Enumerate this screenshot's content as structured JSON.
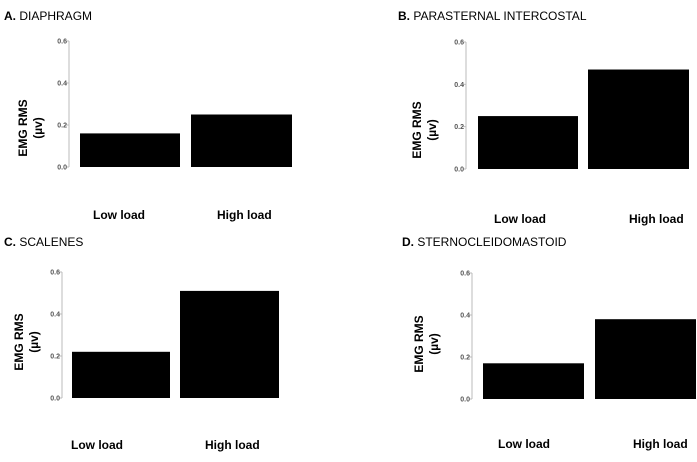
{
  "chart_data": [
    {
      "type": "bar",
      "panel_letter": "A.",
      "title": "DIAPHRAGM",
      "ylabel_line1": "EMG RMS",
      "ylabel_line2": "(µv)",
      "categories": [
        "Low load",
        "High load"
      ],
      "values": [
        0.16,
        0.25
      ],
      "yticks": [
        "0.0",
        "0.2",
        "0.4",
        "0.6"
      ],
      "ylim": [
        0,
        0.6
      ],
      "bar_color": "#000000"
    },
    {
      "type": "bar",
      "panel_letter": "B.",
      "title": "PARASTERNAL INTERCOSTAL",
      "ylabel_line1": "EMG RMS",
      "ylabel_line2": "(µv)",
      "categories": [
        "Low load",
        "High load"
      ],
      "values": [
        0.25,
        0.47
      ],
      "yticks": [
        "0.0",
        "0.2",
        "0.4",
        "0.6"
      ],
      "ylim": [
        0,
        0.6
      ],
      "bar_color": "#000000"
    },
    {
      "type": "bar",
      "panel_letter": "C.",
      "title": "SCALENES",
      "ylabel_line1": "EMG RMS",
      "ylabel_line2": "(µv)",
      "categories": [
        "Low load",
        "High load"
      ],
      "values": [
        0.22,
        0.51
      ],
      "yticks": [
        "0.0",
        "0.2",
        "0.4",
        "0.6"
      ],
      "ylim": [
        0,
        0.6
      ],
      "bar_color": "#000000"
    },
    {
      "type": "bar",
      "panel_letter": "D.",
      "title": "STERNOCLEIDOMASTOID",
      "ylabel_line1": "EMG RMS",
      "ylabel_line2": "(µv)",
      "categories": [
        "Low load",
        "High load"
      ],
      "values": [
        0.17,
        0.38
      ],
      "yticks": [
        "0.0",
        "0.2",
        "0.4",
        "0.6"
      ],
      "ylim": [
        0,
        0.6
      ],
      "bar_color": "#000000"
    }
  ]
}
